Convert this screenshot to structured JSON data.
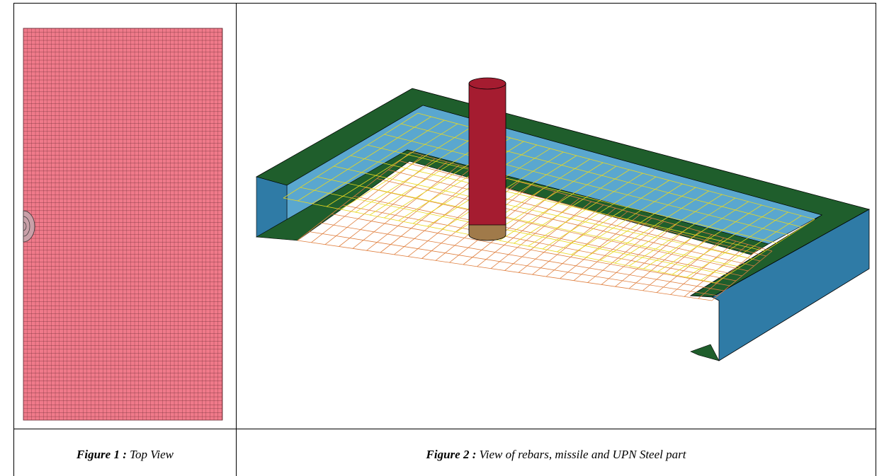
{
  "table": {
    "rows": [
      [
        {
          "label": "Figure 1 :",
          "text": "Top View"
        },
        {
          "label": "Figure 2 :",
          "text": "View of rebars, missile and UPN Steel part"
        }
      ]
    ]
  }
}
